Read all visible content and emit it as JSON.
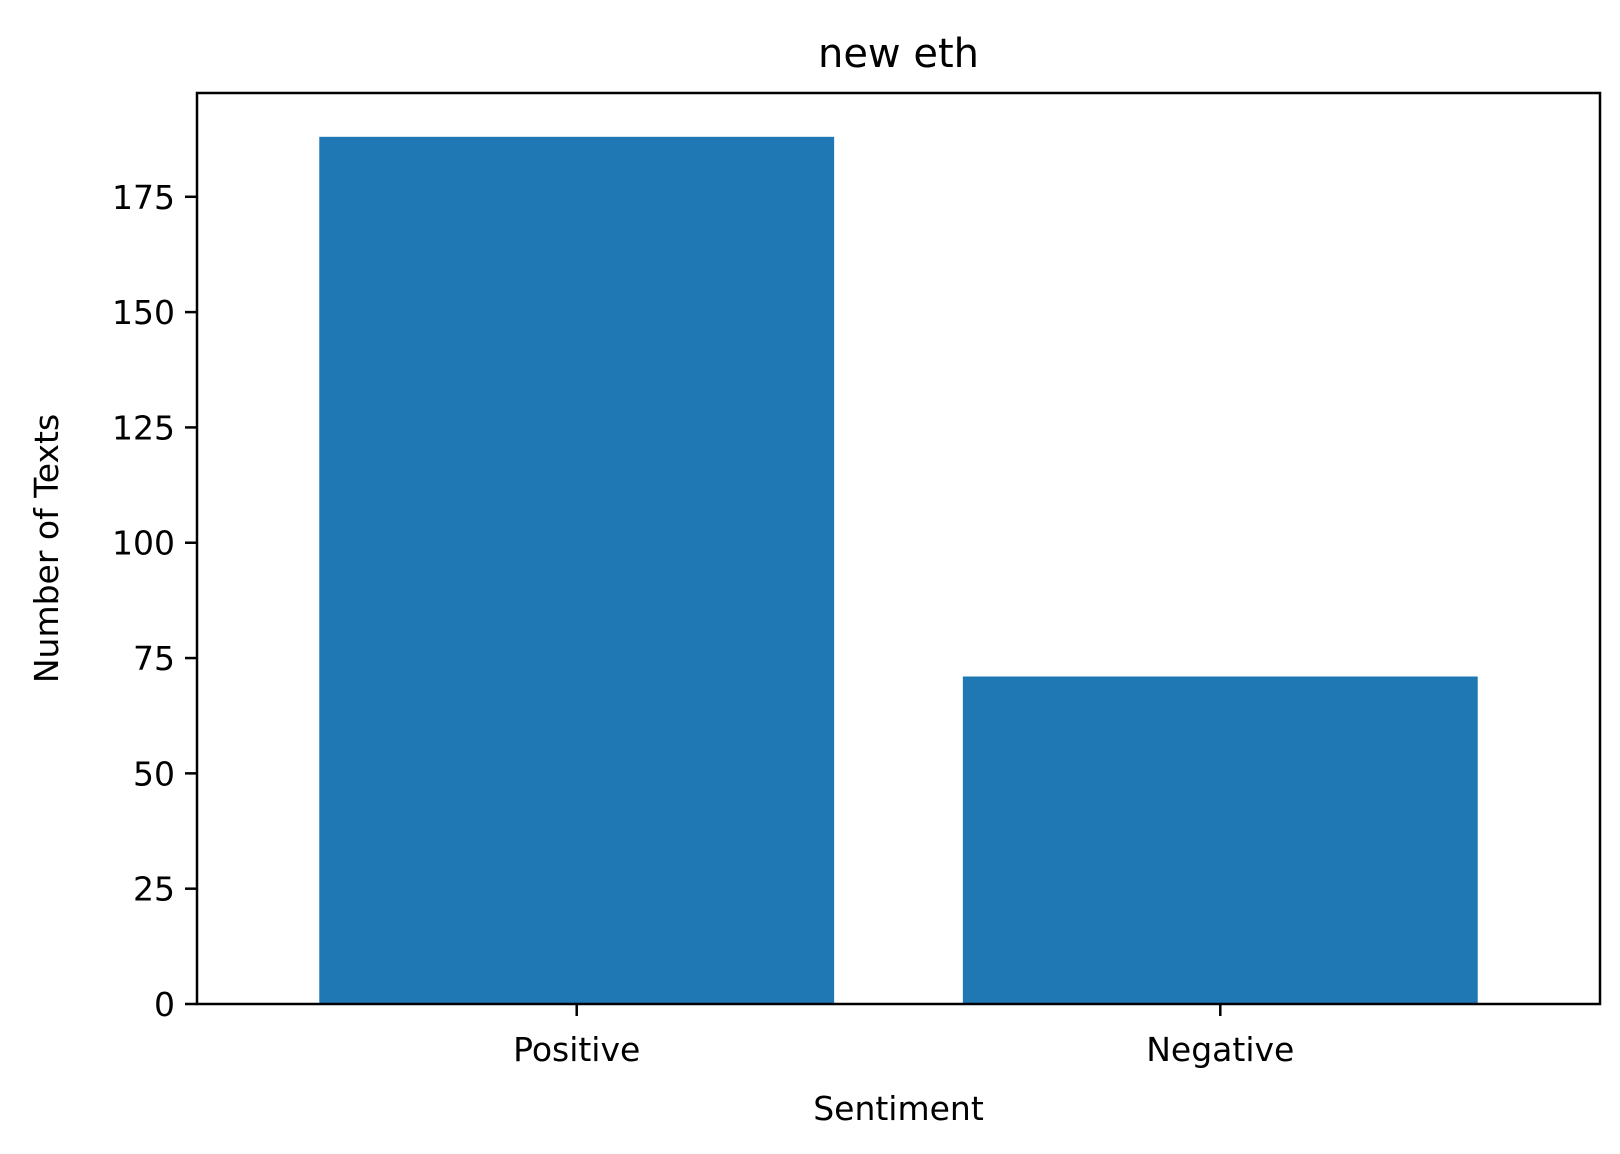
{
  "chart_data": {
    "type": "bar",
    "title": "new eth",
    "xlabel": "Sentiment",
    "ylabel": "Number of Texts",
    "categories": [
      "Positive",
      "Negative"
    ],
    "values": [
      188,
      71
    ],
    "ylim": [
      0,
      197.5
    ],
    "yticks": [
      0,
      25,
      50,
      75,
      100,
      125,
      150,
      175
    ],
    "bar_color": "#1f77b4",
    "grid": false,
    "legend": "none"
  }
}
